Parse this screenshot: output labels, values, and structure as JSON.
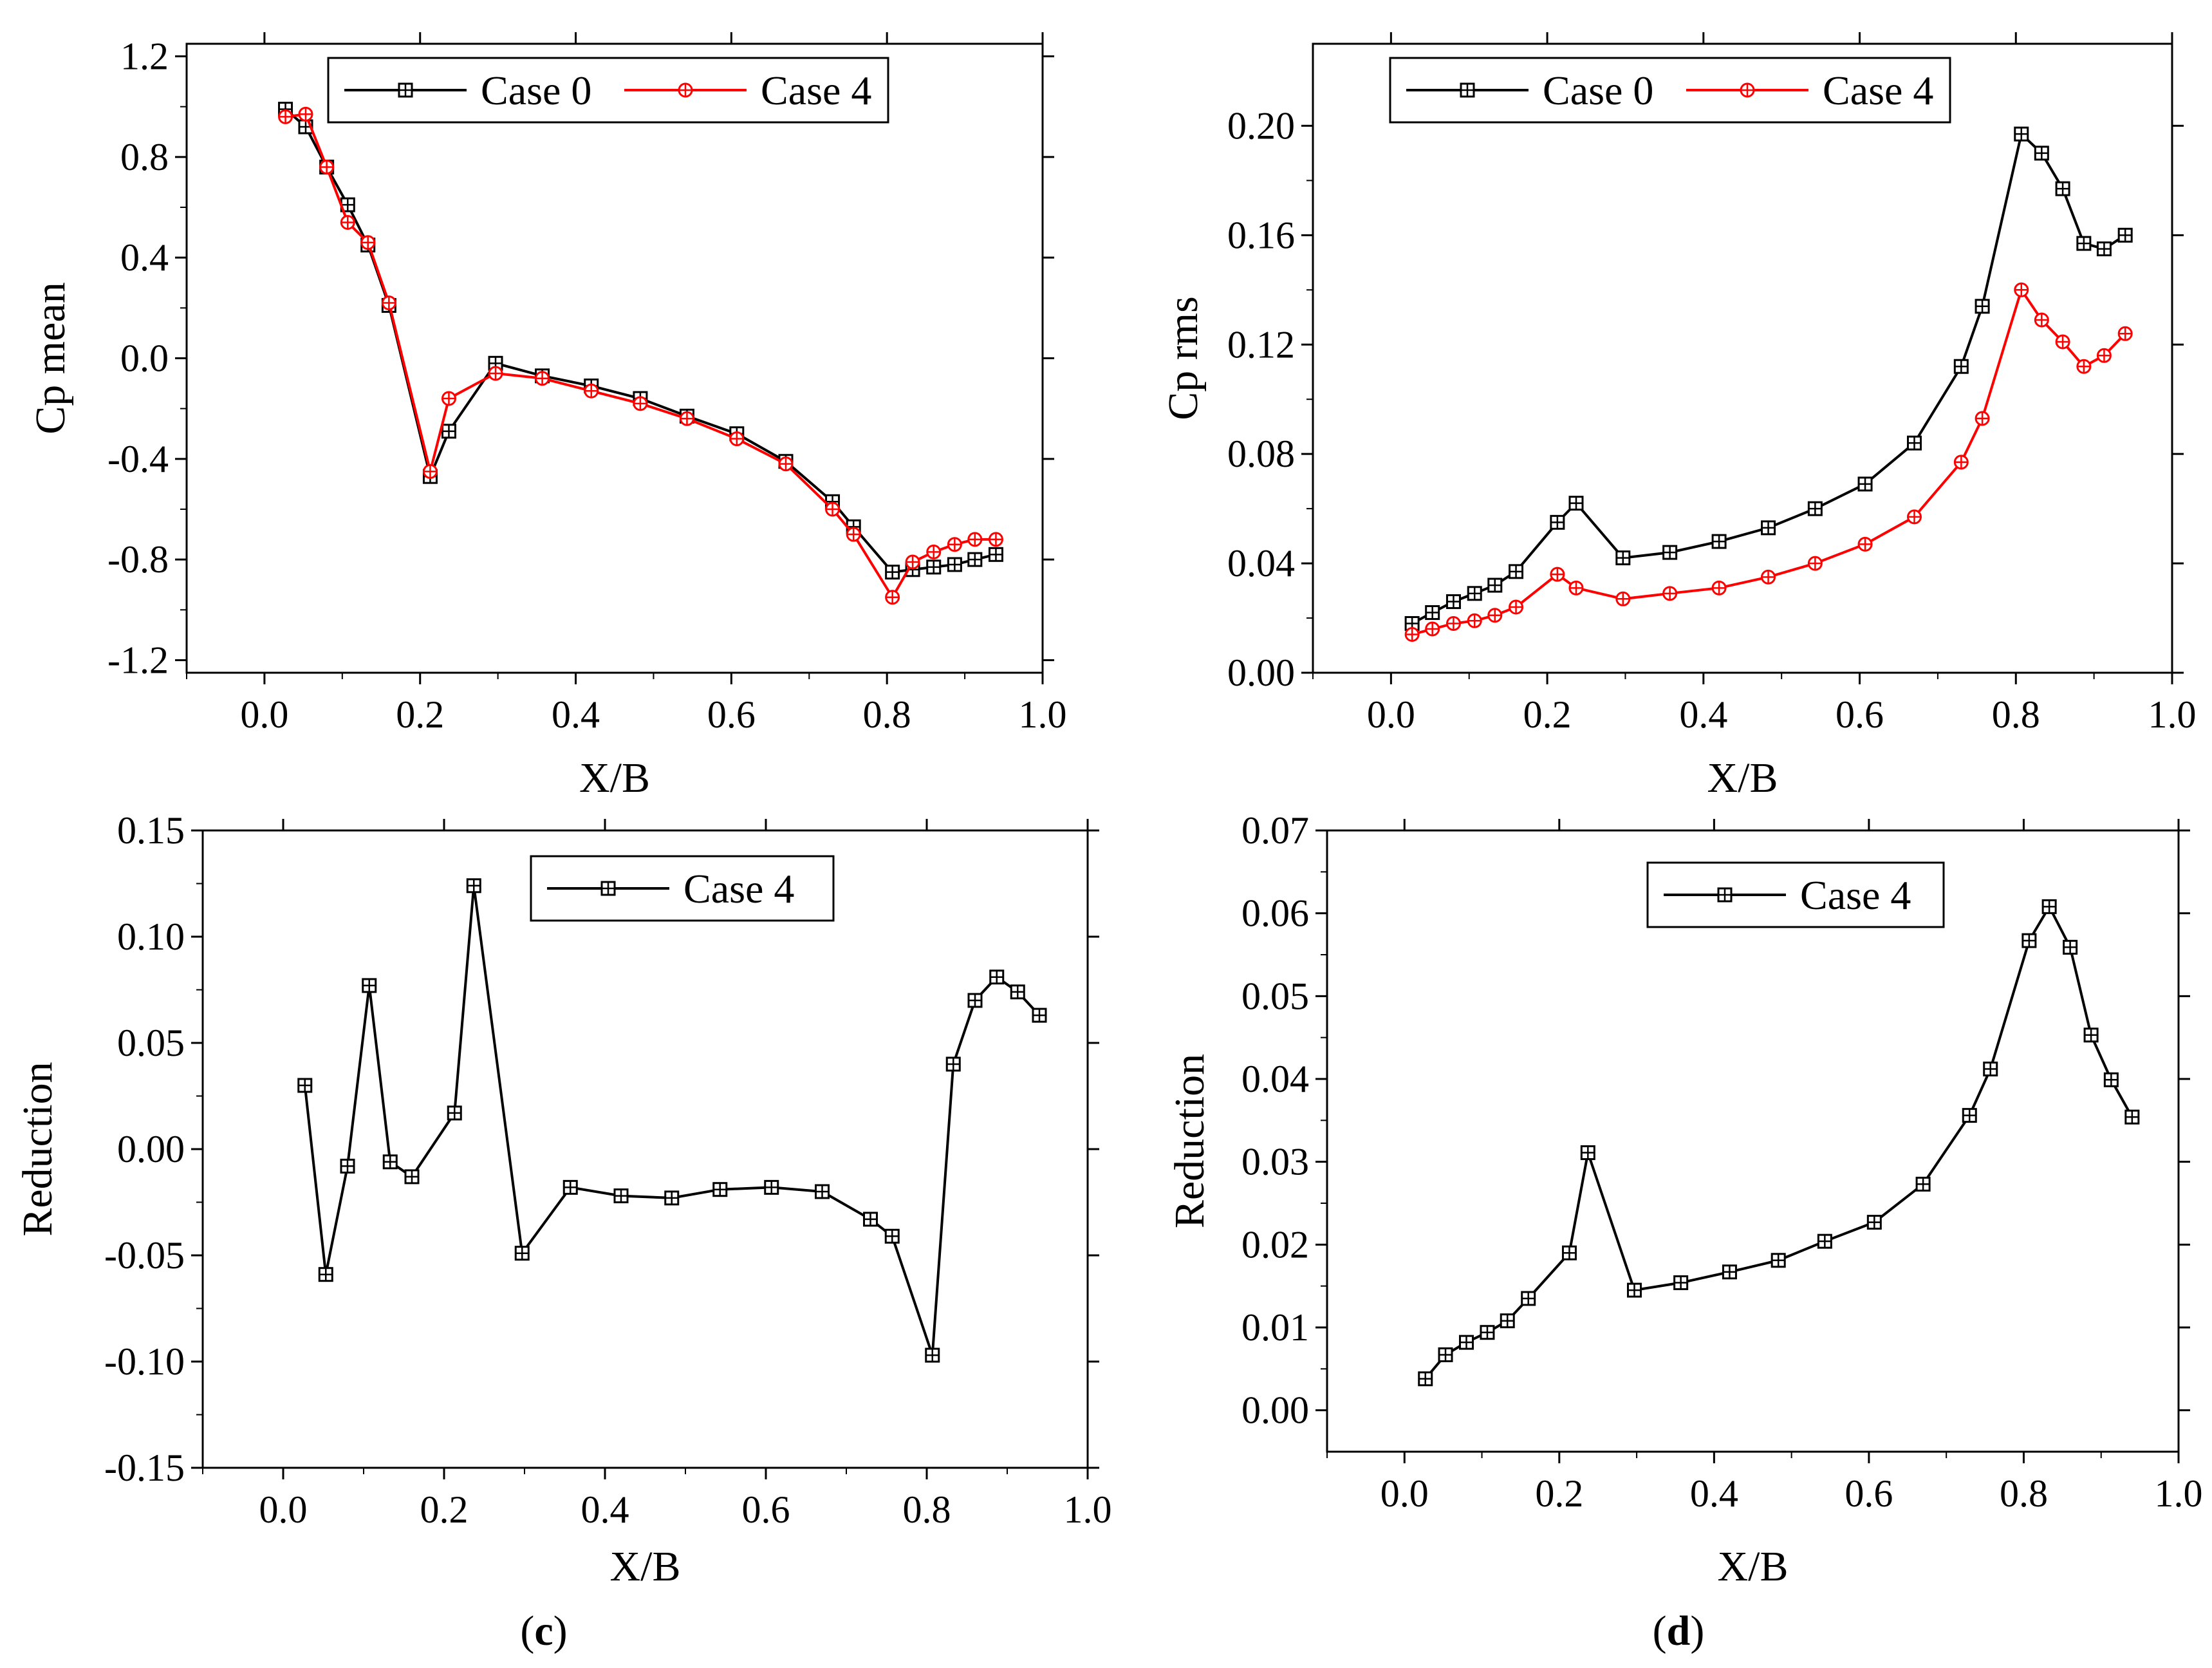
{
  "figure": {
    "panel_labels": [
      {
        "open": "(",
        "letter": "c",
        "close": ")"
      },
      {
        "open": "(",
        "letter": "d",
        "close": ")"
      }
    ]
  },
  "chart_data": [
    {
      "type": "line",
      "xlabel": "X/B",
      "ylabel": "Cp mean",
      "xlim": [
        -0.1,
        1.0
      ],
      "ylim": [
        -1.25,
        1.25
      ],
      "xticks": [
        0.0,
        0.2,
        0.4,
        0.6,
        0.8,
        1.0
      ],
      "xtick_labels": [
        "0.0",
        "0.2",
        "0.4",
        "0.6",
        "0.8",
        "1.0"
      ],
      "yticks": [
        -1.2,
        -0.8,
        -0.4,
        0.0,
        0.4,
        0.8,
        1.2
      ],
      "ytick_labels": [
        "-1.2",
        "-0.8",
        "-0.4",
        "0.0",
        "0.4",
        "0.8",
        "1.2"
      ],
      "legend": "top-center",
      "series": [
        {
          "name": "Case 0",
          "color": "#000000",
          "marker": "square",
          "x": [
            0.027,
            0.053,
            0.08,
            0.107,
            0.133,
            0.16,
            0.213,
            0.237,
            0.297,
            0.357,
            0.42,
            0.483,
            0.543,
            0.607,
            0.67,
            0.73,
            0.757,
            0.807,
            0.833,
            0.86,
            0.887,
            0.913,
            0.94
          ],
          "values": [
            0.99,
            0.92,
            0.76,
            0.61,
            0.45,
            0.21,
            -0.47,
            -0.29,
            -0.02,
            -0.07,
            -0.11,
            -0.16,
            -0.23,
            -0.3,
            -0.41,
            -0.57,
            -0.67,
            -0.85,
            -0.84,
            -0.83,
            -0.82,
            -0.8,
            -0.78
          ]
        },
        {
          "name": "Case 4",
          "color": "#ff0000",
          "marker": "circle",
          "x": [
            0.027,
            0.053,
            0.08,
            0.107,
            0.133,
            0.16,
            0.213,
            0.237,
            0.297,
            0.357,
            0.42,
            0.483,
            0.543,
            0.607,
            0.67,
            0.73,
            0.757,
            0.807,
            0.833,
            0.86,
            0.887,
            0.913,
            0.94
          ],
          "values": [
            0.96,
            0.97,
            0.76,
            0.54,
            0.46,
            0.22,
            -0.45,
            -0.16,
            -0.06,
            -0.08,
            -0.13,
            -0.18,
            -0.24,
            -0.32,
            -0.42,
            -0.6,
            -0.7,
            -0.95,
            -0.81,
            -0.77,
            -0.74,
            -0.72,
            -0.72
          ]
        }
      ]
    },
    {
      "type": "line",
      "xlabel": "X/B",
      "ylabel": "Cp rms",
      "xlim": [
        -0.1,
        1.0
      ],
      "ylim": [
        0.0,
        0.23
      ],
      "xticks": [
        0.0,
        0.2,
        0.4,
        0.6,
        0.8,
        1.0
      ],
      "xtick_labels": [
        "0.0",
        "0.2",
        "0.4",
        "0.6",
        "0.8",
        "1.0"
      ],
      "yticks": [
        0.0,
        0.04,
        0.08,
        0.12,
        0.16,
        0.2
      ],
      "ytick_labels": [
        "0.00",
        "0.04",
        "0.08",
        "0.12",
        "0.16",
        "0.20"
      ],
      "legend": "top-center",
      "series": [
        {
          "name": "Case 0",
          "color": "#000000",
          "marker": "square",
          "x": [
            0.027,
            0.053,
            0.08,
            0.107,
            0.133,
            0.16,
            0.213,
            0.237,
            0.297,
            0.357,
            0.42,
            0.483,
            0.543,
            0.607,
            0.67,
            0.73,
            0.757,
            0.807,
            0.833,
            0.86,
            0.887,
            0.913,
            0.94
          ],
          "values": [
            0.018,
            0.022,
            0.026,
            0.029,
            0.032,
            0.037,
            0.055,
            0.062,
            0.042,
            0.044,
            0.048,
            0.053,
            0.06,
            0.069,
            0.084,
            0.112,
            0.134,
            0.197,
            0.19,
            0.177,
            0.157,
            0.155,
            0.16
          ]
        },
        {
          "name": "Case 4",
          "color": "#ff0000",
          "marker": "circle",
          "x": [
            0.027,
            0.053,
            0.08,
            0.107,
            0.133,
            0.16,
            0.213,
            0.237,
            0.297,
            0.357,
            0.42,
            0.483,
            0.543,
            0.607,
            0.67,
            0.73,
            0.757,
            0.807,
            0.833,
            0.86,
            0.887,
            0.913,
            0.94
          ],
          "values": [
            0.014,
            0.016,
            0.018,
            0.019,
            0.021,
            0.024,
            0.036,
            0.031,
            0.027,
            0.029,
            0.031,
            0.035,
            0.04,
            0.047,
            0.057,
            0.077,
            0.093,
            0.14,
            0.129,
            0.121,
            0.112,
            0.116,
            0.124
          ]
        }
      ]
    },
    {
      "type": "line",
      "xlabel": "X/B",
      "ylabel": "Reduction",
      "xlim": [
        -0.1,
        1.0
      ],
      "ylim": [
        -0.15,
        0.15
      ],
      "xticks": [
        0.0,
        0.2,
        0.4,
        0.6,
        0.8,
        1.0
      ],
      "xtick_labels": [
        "0.0",
        "0.2",
        "0.4",
        "0.6",
        "0.8",
        "1.0"
      ],
      "yticks": [
        -0.15,
        -0.1,
        -0.05,
        0.0,
        0.05,
        0.1,
        0.15
      ],
      "ytick_labels": [
        "-0.15",
        "-0.10",
        "-0.05",
        "0.00",
        "0.05",
        "0.10",
        "0.15"
      ],
      "legend": "top-right",
      "series": [
        {
          "name": "Case 4",
          "color": "#000000",
          "marker": "square",
          "error_bars": true,
          "x": [
            0.027,
            0.053,
            0.08,
            0.107,
            0.133,
            0.16,
            0.213,
            0.237,
            0.297,
            0.357,
            0.42,
            0.483,
            0.543,
            0.607,
            0.67,
            0.73,
            0.757,
            0.807,
            0.833,
            0.86,
            0.887,
            0.913,
            0.94
          ],
          "values": [
            0.03,
            -0.059,
            -0.008,
            0.077,
            -0.006,
            -0.013,
            0.017,
            0.124,
            -0.049,
            -0.018,
            -0.022,
            -0.023,
            -0.019,
            -0.018,
            -0.02,
            -0.033,
            -0.041,
            -0.097,
            0.04,
            0.07,
            0.081,
            0.074,
            0.063
          ]
        }
      ]
    },
    {
      "type": "line",
      "xlabel": "X/B",
      "ylabel": "Reduction",
      "xlim": [
        -0.1,
        1.0
      ],
      "ylim": [
        -0.005,
        0.07
      ],
      "xticks": [
        0.0,
        0.2,
        0.4,
        0.6,
        0.8,
        1.0
      ],
      "xtick_labels": [
        "0.0",
        "0.2",
        "0.4",
        "0.6",
        "0.8",
        "1.0"
      ],
      "yticks": [
        0.0,
        0.01,
        0.02,
        0.03,
        0.04,
        0.05,
        0.06,
        0.07
      ],
      "ytick_labels": [
        "0.00",
        "0.01",
        "0.02",
        "0.03",
        "0.04",
        "0.05",
        "0.06",
        "0.07"
      ],
      "legend": "top-center",
      "series": [
        {
          "name": "Case 4",
          "color": "#000000",
          "marker": "square",
          "error_bars": true,
          "x": [
            0.027,
            0.053,
            0.08,
            0.107,
            0.133,
            0.16,
            0.213,
            0.237,
            0.297,
            0.357,
            0.42,
            0.483,
            0.543,
            0.607,
            0.67,
            0.73,
            0.757,
            0.807,
            0.833,
            0.86,
            0.887,
            0.913,
            0.94
          ],
          "values": [
            0.0038,
            0.0067,
            0.0082,
            0.0094,
            0.0108,
            0.0135,
            0.019,
            0.0311,
            0.0145,
            0.0154,
            0.0167,
            0.0181,
            0.0204,
            0.0227,
            0.0273,
            0.0356,
            0.0412,
            0.0567,
            0.0608,
            0.0559,
            0.0453,
            0.0399,
            0.0354
          ]
        }
      ]
    }
  ]
}
